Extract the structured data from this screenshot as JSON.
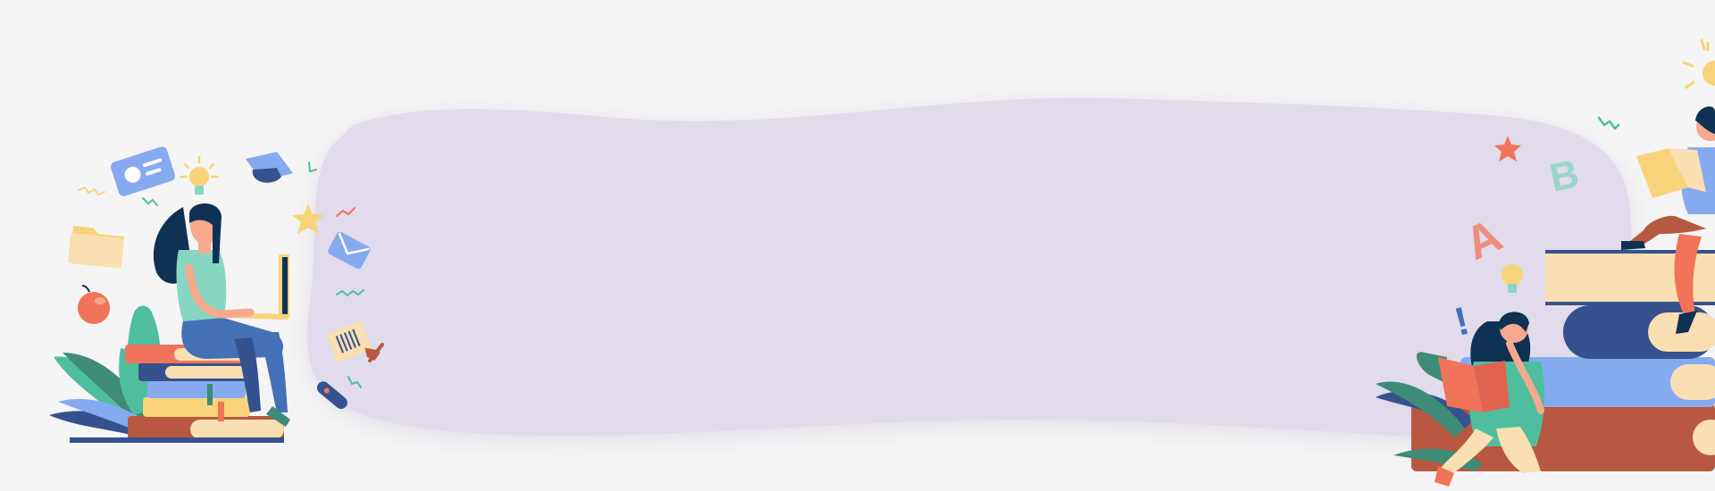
{
  "banner": {
    "letters": {
      "a": "A",
      "b": "B",
      "exclaim": "!"
    },
    "colors": {
      "background": "#f5f5f5",
      "blob": "#e1dbeb",
      "coral": "#f0735a",
      "peach": "#f9dfb1",
      "navy": "#35528e",
      "blue": "#86aaf0",
      "rust": "#b85840",
      "teal": "#4fbe9f",
      "green": "#3e8c78",
      "hair": "#0e3154",
      "skin": "#f6a98c",
      "yellow": "#f8d37a"
    },
    "icons": [
      "id-card-icon",
      "lightbulb-icon",
      "graduation-cap-icon",
      "folder-icon",
      "apple-icon",
      "star-icon",
      "envelope-icon",
      "barcode-ticket-icon",
      "pencil-icon",
      "diploma-scroll-icon",
      "letter-a-icon",
      "letter-b-icon",
      "exclamation-icon",
      "plant-icon",
      "book-stack-icon"
    ]
  }
}
